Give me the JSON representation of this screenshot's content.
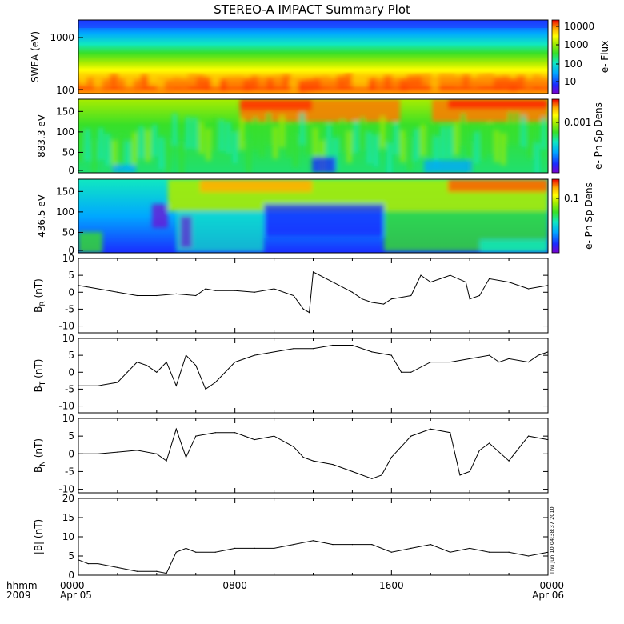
{
  "title": "STEREO-A IMPACT Summary Plot",
  "timestamp": "Thu Jun 10 04:38:37 2010",
  "time_axis": {
    "row1_label": "hhmm",
    "row2_label": "2009",
    "ticks": [
      {
        "hhmm": "0000",
        "date": "Apr 05"
      },
      {
        "hhmm": "0800",
        "date": ""
      },
      {
        "hhmm": "1600",
        "date": ""
      },
      {
        "hhmm": "0000",
        "date": "Apr 06"
      }
    ]
  },
  "colors": {
    "spectrogram_scale": [
      "#7a00d0",
      "#1a2cff",
      "#00a8ff",
      "#10e8c0",
      "#38e028",
      "#a8ec00",
      "#ffff00",
      "#ffb000",
      "#ff5a00",
      "#ee0000"
    ],
    "line": "#000000",
    "frame": "#000000"
  },
  "chart_data": [
    {
      "type": "heatmap",
      "ylabel": "SWEA (eV)",
      "ylog": true,
      "yticks": [
        "1000",
        "100"
      ],
      "colorbar_label": "e- Flux",
      "colorbar_ticks": [
        "10000",
        "1000",
        "100",
        "10"
      ],
      "x_range_hours": [
        0,
        24
      ]
    },
    {
      "type": "heatmap",
      "ylabel": "883.3 eV",
      "yticks": [
        "150",
        "100",
        "50",
        "0"
      ],
      "ylim": [
        0,
        180
      ],
      "colorbar_label": "e- Ph Sp Dens",
      "colorbar_ticks": [
        "0.001"
      ]
    },
    {
      "type": "heatmap",
      "ylabel": "436.5 eV",
      "yticks": [
        "150",
        "100",
        "50",
        "0"
      ],
      "ylim": [
        0,
        180
      ],
      "colorbar_label": "e- Ph Sp Dens",
      "colorbar_ticks": [
        "0.1"
      ]
    },
    {
      "type": "line",
      "ylabel_main": "B",
      "ylabel_sub": "R",
      "ylabel_unit": "(nT)",
      "ylim": [
        -12,
        10
      ],
      "yticks": [
        "10",
        "5",
        "0",
        "-5",
        "-10"
      ],
      "x": [
        0,
        1,
        2,
        3,
        4,
        5,
        6,
        6.5,
        7,
        8,
        9,
        10,
        11,
        11.5,
        11.8,
        12,
        13,
        14,
        14.5,
        15,
        15.6,
        16,
        17,
        17.5,
        18,
        18.5,
        19,
        19.8,
        20,
        20.5,
        21,
        22,
        23,
        24
      ],
      "y": [
        2,
        1,
        0,
        -1,
        -1,
        -0.5,
        -1,
        1,
        0.5,
        0.5,
        0,
        1,
        -1,
        -5,
        -6,
        6,
        3,
        0,
        -2,
        -3,
        -3.5,
        -2,
        -1,
        5,
        3,
        4,
        5,
        3,
        -2,
        -1,
        4,
        3,
        1,
        2
      ]
    },
    {
      "type": "line",
      "ylabel_main": "B",
      "ylabel_sub": "T",
      "ylabel_unit": "(nT)",
      "ylim": [
        -12,
        10
      ],
      "yticks": [
        "10",
        "5",
        "0",
        "-5",
        "-10"
      ],
      "x": [
        0,
        1,
        2,
        2.5,
        3,
        3.5,
        4,
        4.5,
        5,
        5.5,
        6,
        6.5,
        7,
        8,
        9,
        10,
        11,
        12,
        13,
        14,
        15,
        16,
        16.5,
        17,
        18,
        19,
        20,
        21,
        21.5,
        22,
        23,
        23.5,
        24
      ],
      "y": [
        -4,
        -4,
        -3,
        0,
        3,
        2,
        0,
        3,
        -4,
        5,
        2,
        -5,
        -3,
        3,
        5,
        6,
        7,
        7,
        8,
        8,
        6,
        5,
        0,
        0,
        3,
        3,
        4,
        5,
        3,
        4,
        3,
        5,
        6
      ]
    },
    {
      "type": "line",
      "ylabel_main": "B",
      "ylabel_sub": "N",
      "ylabel_unit": "(nT)",
      "ylim": [
        -11,
        10
      ],
      "yticks": [
        "10",
        "5",
        "0",
        "-5",
        "-10"
      ],
      "x": [
        0,
        1,
        2,
        3,
        4,
        4.5,
        5,
        5.5,
        6,
        7,
        8,
        8.5,
        9,
        10,
        11,
        11.5,
        12,
        13,
        14,
        15,
        15.5,
        16,
        17,
        18,
        19,
        19.5,
        20,
        20.5,
        21,
        22,
        23,
        24
      ],
      "y": [
        0,
        0,
        0.5,
        1,
        0,
        -2,
        7,
        -1,
        5,
        6,
        6,
        5,
        4,
        5,
        2,
        -1,
        -2,
        -3,
        -5,
        -7,
        -6,
        -1,
        5,
        7,
        6,
        -6,
        -5,
        1,
        3,
        -2,
        5,
        4
      ]
    },
    {
      "type": "line",
      "ylabel_main": "|B|",
      "ylabel_sub": "",
      "ylabel_unit": "(nT)",
      "ylim": [
        0,
        20
      ],
      "yticks": [
        "20",
        "15",
        "10",
        "5",
        "0"
      ],
      "x": [
        0,
        0.5,
        1,
        2,
        3,
        4,
        4.5,
        5,
        5.5,
        6,
        7,
        8,
        9,
        10,
        11,
        12,
        13,
        14,
        15,
        16,
        17,
        18,
        19,
        20,
        21,
        22,
        23,
        24
      ],
      "y": [
        4,
        3,
        3,
        2,
        1,
        1,
        0.5,
        6,
        7,
        6,
        6,
        7,
        7,
        7,
        8,
        9,
        8,
        8,
        8,
        6,
        7,
        8,
        6,
        7,
        6,
        6,
        5,
        6
      ]
    }
  ]
}
